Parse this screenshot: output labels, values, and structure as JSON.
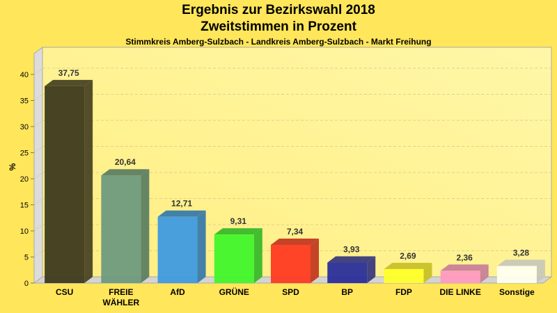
{
  "chart_data": {
    "type": "bar",
    "title": "Ergebnis zur Bezirkswahl 2018",
    "subtitle": "Zweitstimmen in Prozent",
    "subtitle2": "Stimmkreis Amberg-Sulzbach - Landkreis Amberg-Sulzbach - Markt Freihung",
    "xlabel": "",
    "ylabel": "%",
    "ylim": [
      0,
      40
    ],
    "yticks": [
      0,
      5,
      10,
      15,
      20,
      25,
      30,
      35,
      40
    ],
    "grid": true,
    "categories": [
      "CSU",
      "FREIE WÄHLER",
      "AfD",
      "GRÜNE",
      "SPD",
      "BP",
      "FDP",
      "DIE LINKE",
      "Sonstige"
    ],
    "category_lines": [
      [
        "CSU"
      ],
      [
        "FREIE",
        "WÄHLER"
      ],
      [
        "AfD"
      ],
      [
        "GRÜNE"
      ],
      [
        "SPD"
      ],
      [
        "BP"
      ],
      [
        "FDP"
      ],
      [
        "DIE LINKE"
      ],
      [
        "Sonstige"
      ]
    ],
    "values": [
      37.75,
      20.64,
      12.71,
      9.31,
      7.34,
      3.93,
      2.69,
      2.36,
      3.28
    ],
    "data_labels": [
      "37,75",
      "20,64",
      "12,71",
      "9,31",
      "7,34",
      "3,93",
      "2,69",
      "2,36",
      "3,28"
    ],
    "colors": [
      "#3E3A1E",
      "#6E9A7E",
      "#3E9AE0",
      "#40F52A",
      "#FF3A22",
      "#2A2E9A",
      "#FFFF2A",
      "#FF9AC0",
      "#FFFFF0"
    ],
    "side_colors": [
      "#4A4424",
      "#5E7E62",
      "#3A7AAA",
      "#3AB82A",
      "#C23A22",
      "#3A3A7E",
      "#C8C028",
      "#C88098",
      "#C8C8B8"
    ]
  }
}
